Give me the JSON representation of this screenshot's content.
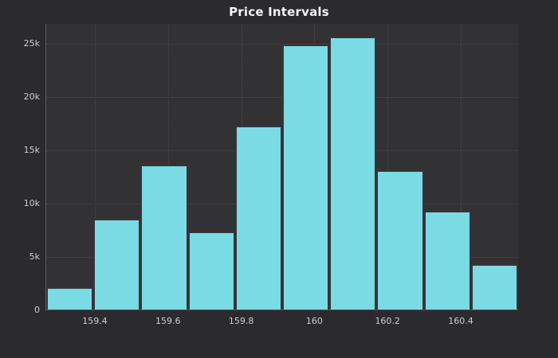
{
  "chart_data": {
    "type": "bar",
    "subtype": "histogram",
    "title": "Price Intervals",
    "xlabel": "",
    "ylabel": "",
    "bin_edges": [
      159.267,
      159.396,
      159.525,
      159.654,
      159.783,
      159.912,
      160.041,
      160.17,
      160.299,
      160.428,
      160.557
    ],
    "values": [
      2100,
      8500,
      13600,
      7300,
      17300,
      24900,
      25600,
      13100,
      9300,
      4300
    ],
    "x_ticks": {
      "values": [
        159.4,
        159.6,
        159.8,
        160.0,
        160.2,
        160.4
      ],
      "labels": [
        "159.4",
        "159.6",
        "159.8",
        "160",
        "160.2",
        "160.4"
      ]
    },
    "y_ticks": {
      "values": [
        0,
        5000,
        10000,
        15000,
        20000,
        25000
      ],
      "labels": [
        "0",
        "5k",
        "10k",
        "15k",
        "20k",
        "25k"
      ]
    },
    "xlim": [
      159.267,
      160.557
    ],
    "ylim": [
      0,
      26900
    ],
    "grid": "dotted, horizontal and vertical at ticks",
    "legend": "none",
    "colors": {
      "background": "#2b2a2d",
      "plot_background": "#323134",
      "bar_fill": "#7bdbe4",
      "bar_border": "#35353a",
      "gridline": "#4b494e",
      "axis_line": "#5a5a62",
      "tick_label": "#cfcfd2",
      "title": "#f2f2f2"
    }
  }
}
